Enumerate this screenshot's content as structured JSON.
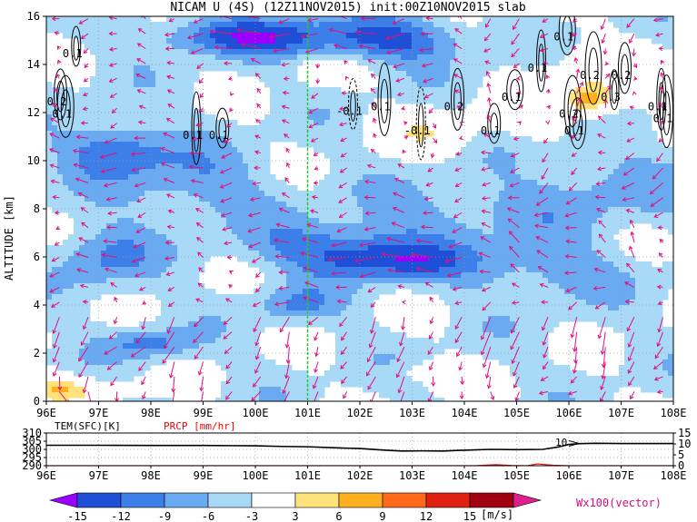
{
  "chart_data": [
    {
      "type": "heatmap",
      "title": "NICAM U (4S) (12Z11NOV2015) init:00Z10NOV2015 slab",
      "ylabel": "ALTITUDE [km]",
      "xlabel": "",
      "x_ticks": [
        "96E",
        "97E",
        "98E",
        "99E",
        "100E",
        "101E",
        "102E",
        "103E",
        "104E",
        "105E",
        "106E",
        "107E",
        "108E"
      ],
      "y_ticks": [
        "0",
        "2",
        "4",
        "6",
        "8",
        "10",
        "12",
        "14",
        "16"
      ],
      "xlim": [
        96,
        108
      ],
      "ylim": [
        0,
        16
      ],
      "grid": true,
      "marker_line_longitude": 101,
      "contour_labels": [
        {
          "text": "0.1",
          "lon": 96.5,
          "alt": 14.3
        },
        {
          "text": "0.2",
          "lon": 96.2,
          "alt": 12.3
        },
        {
          "text": "0.1",
          "lon": 96.3,
          "alt": 11.8
        },
        {
          "text": "0.1",
          "lon": 98.8,
          "alt": 10.9
        },
        {
          "text": "0.1",
          "lon": 99.3,
          "alt": 10.9
        },
        {
          "text": "0.1",
          "lon": 105.9,
          "alt": 15.0
        },
        {
          "text": "0.1",
          "lon": 105.4,
          "alt": 13.7
        },
        {
          "text": "0.1",
          "lon": 102.4,
          "alt": 12.1
        },
        {
          "text": "0.1",
          "lon": 104.9,
          "alt": 12.5
        },
        {
          "text": "-0.1",
          "lon": 101.8,
          "alt": 11.9
        },
        {
          "text": "0.2",
          "lon": 103.8,
          "alt": 12.1
        },
        {
          "text": "0.2",
          "lon": 106.4,
          "alt": 13.4
        },
        {
          "text": "0.3",
          "lon": 106.8,
          "alt": 12.5
        },
        {
          "text": "0.2",
          "lon": 107.0,
          "alt": 13.4
        },
        {
          "text": "0.2",
          "lon": 106.0,
          "alt": 11.8
        },
        {
          "text": "-0.1",
          "lon": 103.1,
          "alt": 11.1
        },
        {
          "text": "0.1",
          "lon": 104.5,
          "alt": 11.1
        },
        {
          "text": "0.1",
          "lon": 106.1,
          "alt": 11.1
        },
        {
          "text": "0.1",
          "lon": 107.7,
          "alt": 12.1
        },
        {
          "text": "0.1",
          "lon": 107.8,
          "alt": 11.6
        }
      ],
      "colorbar": {
        "levels": [
          "-15",
          "-12",
          "-9",
          "-6",
          "-3",
          "3",
          "6",
          "9",
          "12",
          "15"
        ],
        "colors": [
          "#9a00ff",
          "#1e4fd6",
          "#3c7fe8",
          "#6aaaf0",
          "#a8daf8",
          "#ffffff",
          "#ffe37a",
          "#ffb020",
          "#ff6a1a",
          "#e02010",
          "#a00010",
          "#e0208a"
        ],
        "units": "[m/s]",
        "vector_label": "Wx100(vector)"
      },
      "fields": {
        "u_blobs": [
          {
            "lon": 99.8,
            "alt": 15.2,
            "rlon": 1.7,
            "ralt": 0.8,
            "v": -10
          },
          {
            "lon": 102.6,
            "alt": 15.0,
            "rlon": 1.5,
            "ralt": 0.9,
            "v": -9
          },
          {
            "lon": 101.6,
            "alt": 6.4,
            "rlon": 1.6,
            "ralt": 1.1,
            "v": -8
          },
          {
            "lon": 102.8,
            "alt": 5.8,
            "rlon": 1.4,
            "ralt": 0.8,
            "v": -7
          },
          {
            "lon": 97.1,
            "alt": 6.0,
            "rlon": 0.9,
            "ralt": 1.3,
            "v": -6
          },
          {
            "lon": 98.0,
            "alt": 2.4,
            "rlon": 0.8,
            "ralt": 0.6,
            "v": -7
          },
          {
            "lon": 100.8,
            "alt": 4.0,
            "rlon": 0.7,
            "ralt": 0.7,
            "v": -6
          },
          {
            "lon": 97.3,
            "alt": 10.5,
            "rlon": 1.0,
            "ralt": 1.1,
            "v": -8
          },
          {
            "lon": 98.8,
            "alt": 9.0,
            "rlon": 1.5,
            "ralt": 1.5,
            "v": -5
          },
          {
            "lon": 105.5,
            "alt": 5.5,
            "rlon": 1.5,
            "ralt": 1.3,
            "v": -5
          },
          {
            "lon": 106.8,
            "alt": 9.0,
            "rlon": 1.5,
            "ralt": 1.5,
            "v": -4
          },
          {
            "lon": 104.0,
            "alt": 8.0,
            "rlon": 1.8,
            "ralt": 1.2,
            "v": -4
          },
          {
            "lon": 103.4,
            "alt": 11.2,
            "rlon": 0.9,
            "ralt": 0.9,
            "v": 5
          },
          {
            "lon": 106.5,
            "alt": 13.3,
            "rlon": 1.1,
            "ralt": 1.5,
            "v": 5
          },
          {
            "lon": 105.2,
            "alt": 11.8,
            "rlon": 0.6,
            "ralt": 0.7,
            "v": 4
          },
          {
            "lon": 106.4,
            "alt": 12.5,
            "rlon": 0.4,
            "ralt": 0.6,
            "v": 8
          },
          {
            "lon": 96.2,
            "alt": 0.5,
            "rlon": 0.6,
            "ralt": 0.6,
            "v": 8
          },
          {
            "lon": 97.2,
            "alt": 0.5,
            "rlon": 0.7,
            "ralt": 0.4,
            "v": 4
          },
          {
            "lon": 103.4,
            "alt": 1.2,
            "rlon": 0.6,
            "ralt": 0.4,
            "v": 4
          },
          {
            "lon": 104.5,
            "alt": 0.3,
            "rlon": 0.6,
            "ralt": 0.3,
            "v": 4
          },
          {
            "lon": 101.3,
            "alt": 13.8,
            "rlon": 0.5,
            "ralt": 0.6,
            "v": 4
          }
        ]
      }
    },
    {
      "type": "line",
      "labels": [
        "TEM(SFC)[K]",
        "PRCP [mm/hr]"
      ],
      "label_colors": [
        "#000000",
        "#ff0000"
      ],
      "x_ticks": [
        "96E",
        "97E",
        "98E",
        "99E",
        "100E",
        "101E",
        "102E",
        "103E",
        "104E",
        "105E",
        "106E",
        "107E",
        "108E"
      ],
      "y_left_ticks": [
        "310",
        "305",
        "300",
        "295",
        "290"
      ],
      "y_right_ticks": [
        "15",
        "10",
        "5",
        "0"
      ],
      "ylim_left": [
        290,
        310
      ],
      "ylim_right": [
        0,
        15
      ],
      "annotation": "10",
      "series": [
        {
          "name": "TEM(SFC)[K]",
          "x": [
            96,
            97,
            98,
            99,
            100,
            100.5,
            101,
            101.5,
            102,
            102.5,
            102.8,
            103.2,
            103.6,
            104.0,
            104.5,
            105.0,
            105.5,
            105.8,
            106.0,
            106.2,
            106.5,
            107,
            108
          ],
          "y": [
            302.5,
            302.5,
            302.4,
            302.4,
            302.2,
            301.8,
            301.6,
            301.0,
            300.5,
            299.5,
            299.0,
            299.1,
            299.0,
            299.5,
            300.0,
            299.8,
            300.0,
            301.5,
            303.0,
            303.5,
            303.7,
            303.6,
            303.6
          ]
        },
        {
          "name": "PRCP [mm/hr]",
          "x": [
            96,
            104.2,
            104.6,
            104.9,
            105.2,
            105.4,
            105.7,
            106.0,
            108
          ],
          "y": [
            0,
            0,
            0.5,
            0.1,
            0,
            0.8,
            0.2,
            0,
            0
          ]
        }
      ]
    }
  ]
}
